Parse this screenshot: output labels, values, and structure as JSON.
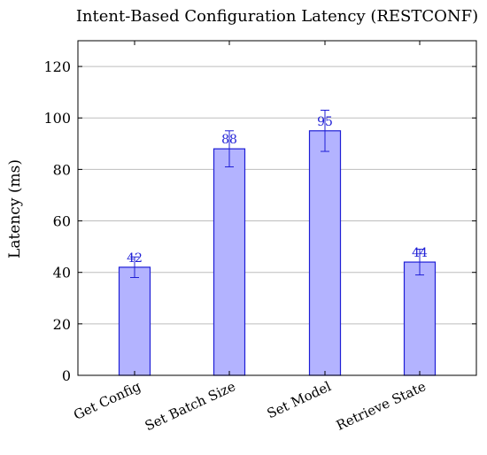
{
  "chart_data": {
    "type": "bar",
    "title": "Intent-Based Configuration Latency (RESTCONF)",
    "xlabel": "",
    "ylabel": "Latency (ms)",
    "categories": [
      "Get Config",
      "Set Batch Size",
      "Set Model",
      "Retrieve State"
    ],
    "values": [
      42,
      88,
      95,
      44
    ],
    "error_low": [
      38,
      81,
      87,
      39
    ],
    "error_high": [
      46,
      95,
      103,
      49
    ],
    "data_labels": [
      "42",
      "88",
      "95",
      "44"
    ],
    "ylim": [
      0,
      130
    ],
    "yticks": [
      0,
      20,
      40,
      60,
      80,
      100,
      120
    ],
    "grid": true,
    "colors": {
      "bar_fill": "#b3b3ff",
      "bar_stroke": "#1f1fd6",
      "label": "#1f1fd6",
      "grid": "#bdbdbd"
    }
  }
}
